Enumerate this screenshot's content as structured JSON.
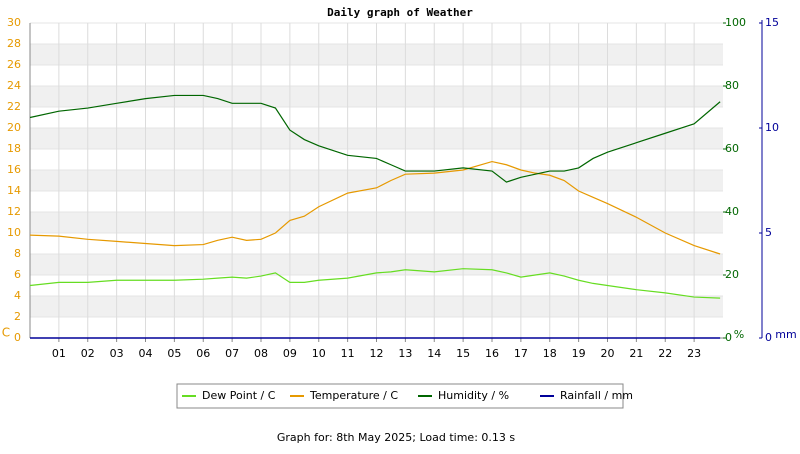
{
  "chart_data": {
    "type": "line",
    "title": "Daily graph of Weather",
    "footer": "Graph for: 8th May 2025; Load time: 0.13 s",
    "y_label": "C",
    "y2_label": "%",
    "y3_label": "mm",
    "x": [
      0,
      1,
      2,
      3,
      4,
      5,
      6,
      6.5,
      7,
      7.5,
      8,
      8.5,
      9,
      9.5,
      10,
      11,
      12,
      12.5,
      13,
      14,
      15,
      16,
      16.5,
      17,
      17.5,
      18,
      18.5,
      19,
      19.5,
      20,
      21,
      22,
      23,
      23.9
    ],
    "xlim": [
      0,
      24
    ],
    "xticks": [
      {
        "value": 1,
        "label": "01"
      },
      {
        "value": 2,
        "label": "02"
      },
      {
        "value": 3,
        "label": "03"
      },
      {
        "value": 4,
        "label": "04"
      },
      {
        "value": 5,
        "label": "05"
      },
      {
        "value": 6,
        "label": "06"
      },
      {
        "value": 7,
        "label": "07"
      },
      {
        "value": 8,
        "label": "08"
      },
      {
        "value": 9,
        "label": "09"
      },
      {
        "value": 10,
        "label": "10"
      },
      {
        "value": 11,
        "label": "11"
      },
      {
        "value": 12,
        "label": "12"
      },
      {
        "value": 13,
        "label": "13"
      },
      {
        "value": 14,
        "label": "14"
      },
      {
        "value": 15,
        "label": "15"
      },
      {
        "value": 16,
        "label": "16"
      },
      {
        "value": 17,
        "label": "17"
      },
      {
        "value": 18,
        "label": "18"
      },
      {
        "value": 19,
        "label": "19"
      },
      {
        "value": 20,
        "label": "20"
      },
      {
        "value": 21,
        "label": "21"
      },
      {
        "value": 22,
        "label": "22"
      },
      {
        "value": 23,
        "label": "23"
      }
    ],
    "ylim": [
      0,
      30
    ],
    "yticks": [
      0,
      2,
      4,
      6,
      8,
      10,
      12,
      14,
      16,
      18,
      20,
      22,
      24,
      26,
      28,
      30
    ],
    "y2lim": [
      0,
      100
    ],
    "y2ticks": [
      0,
      20,
      40,
      60,
      80,
      100
    ],
    "y3lim": [
      0,
      15
    ],
    "y3ticks": [
      0,
      5,
      10,
      15
    ],
    "grid": true,
    "series": [
      {
        "name": "Dew Point / C",
        "color": "#66dd22",
        "axis": "y",
        "values": [
          5.0,
          5.3,
          5.3,
          5.5,
          5.5,
          5.5,
          5.6,
          5.7,
          5.8,
          5.7,
          5.9,
          6.2,
          5.3,
          5.3,
          5.5,
          5.7,
          6.2,
          6.3,
          6.5,
          6.3,
          6.6,
          6.5,
          6.2,
          5.8,
          6.0,
          6.2,
          5.9,
          5.5,
          5.2,
          5.0,
          4.6,
          4.3,
          3.9,
          3.8
        ]
      },
      {
        "name": "Temperature / C",
        "color": "#e69900",
        "axis": "y",
        "values": [
          9.8,
          9.7,
          9.4,
          9.2,
          9.0,
          8.8,
          8.9,
          9.3,
          9.6,
          9.3,
          9.4,
          10.0,
          11.2,
          11.6,
          12.5,
          13.8,
          14.3,
          15.0,
          15.6,
          15.7,
          16.0,
          16.8,
          16.5,
          16.0,
          15.7,
          15.5,
          15.0,
          14.0,
          13.4,
          12.8,
          11.5,
          10.0,
          8.8,
          8.0
        ]
      },
      {
        "name": "Humidity / %",
        "color": "#006600",
        "axis": "y2",
        "values": [
          70,
          72,
          73,
          74.5,
          76,
          77,
          77,
          76,
          74.5,
          74.5,
          74.5,
          73,
          66,
          63,
          61,
          58,
          57,
          55,
          53,
          53,
          54,
          53,
          49.5,
          51,
          52,
          53,
          53,
          54,
          57,
          59,
          62,
          65,
          68,
          75
        ]
      },
      {
        "name": "Rainfall / mm",
        "color": "#000099",
        "axis": "y3",
        "values": [
          0,
          0,
          0,
          0,
          0,
          0,
          0,
          0,
          0,
          0,
          0,
          0,
          0,
          0,
          0,
          0,
          0,
          0,
          0,
          0,
          0,
          0,
          0,
          0,
          0,
          0,
          0,
          0,
          0,
          0,
          0,
          0,
          0,
          0
        ]
      }
    ]
  }
}
